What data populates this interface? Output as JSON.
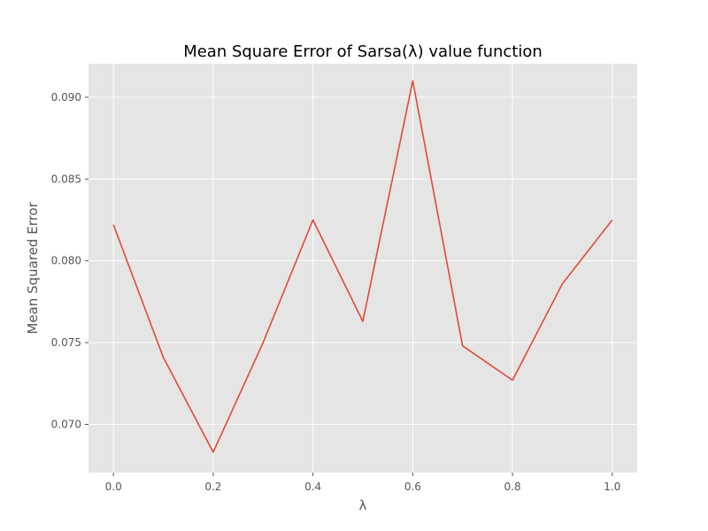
{
  "chart_data": {
    "type": "line",
    "title": "Mean Square Error of Sarsa(λ) value function",
    "xlabel": "λ",
    "ylabel": "Mean Squared Error",
    "x": [
      0.0,
      0.1,
      0.2,
      0.3,
      0.4,
      0.5,
      0.6,
      0.7,
      0.8,
      0.9,
      1.0
    ],
    "series": [
      {
        "values": [
          0.0822,
          0.0741,
          0.0683,
          0.075,
          0.0825,
          0.0763,
          0.091,
          0.0748,
          0.0727,
          0.0786,
          0.0825
        ]
      }
    ],
    "xticks": [
      "0.0",
      "0.2",
      "0.4",
      "0.6",
      "0.8",
      "1.0"
    ],
    "xtick_values": [
      0.0,
      0.2,
      0.4,
      0.6,
      0.8,
      1.0
    ],
    "yticks": [
      "0.070",
      "0.075",
      "0.080",
      "0.085",
      "0.090"
    ],
    "ytick_values": [
      0.07,
      0.075,
      0.08,
      0.085,
      0.09
    ],
    "xlim": [
      -0.05,
      1.05
    ],
    "ylim": [
      0.06705,
      0.09205
    ],
    "grid": true,
    "style": {
      "background": "#e5e5e5",
      "grid_color": "#ffffff",
      "line_color": "#e24a33"
    }
  }
}
